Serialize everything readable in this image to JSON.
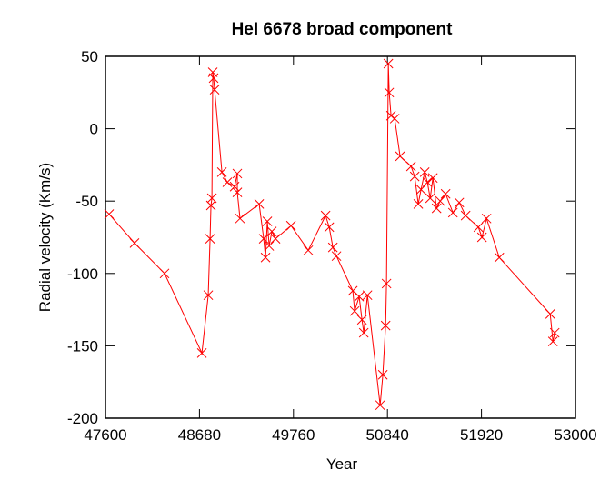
{
  "chart_data": {
    "type": "line",
    "title": "HeI 6678  broad component",
    "xlabel": "Year",
    "ylabel": "Radial velocity  (Km/s)",
    "color": "#ff0000",
    "marker": "x",
    "x": [
      47642,
      47934,
      48279,
      48708,
      48781,
      48802,
      48812,
      48823,
      48833,
      48843,
      48854,
      48938,
      49000,
      49084,
      49115,
      49115,
      49146,
      49366,
      49418,
      49439,
      49460,
      49481,
      49512,
      49554,
      49732,
      49930,
      50129,
      50171,
      50213,
      50254,
      50442,
      50463,
      50515,
      50547,
      50568,
      50610,
      50756,
      50787,
      50819,
      50829,
      50850,
      50860,
      50881,
      50923,
      50985,
      51111,
      51153,
      51194,
      51226,
      51268,
      51299,
      51331,
      51362,
      51404,
      51446,
      51508,
      51592,
      51665,
      51738,
      51884,
      51926,
      51978,
      52125,
      52710,
      52741,
      52762
    ],
    "values": [
      -59,
      -79,
      -100,
      -155,
      -115,
      -76,
      -53,
      -48,
      39,
      35,
      27,
      -30,
      -37,
      -40,
      -31,
      -44,
      -62,
      -52,
      -76,
      -89,
      -64,
      -81,
      -71,
      -76,
      -67,
      -84,
      -60,
      -68,
      -82,
      -88,
      -112,
      -126,
      -116,
      -132,
      -141,
      -115,
      -191,
      -170,
      -136,
      -107,
      45,
      25,
      9,
      7,
      -19,
      -26,
      -33,
      -52,
      -42,
      -30,
      -37,
      -48,
      -34,
      -55,
      -50,
      -45,
      -58,
      -51,
      -60,
      -68,
      -75,
      -62,
      -89,
      -128,
      -147,
      -141
    ],
    "xlim": [
      47600,
      53000
    ],
    "xticks": [
      47600,
      48680,
      49760,
      50840,
      51920,
      53000
    ],
    "ylim": [
      -200,
      50
    ],
    "yticks": [
      -200,
      -150,
      -100,
      -50,
      0,
      50
    ]
  }
}
